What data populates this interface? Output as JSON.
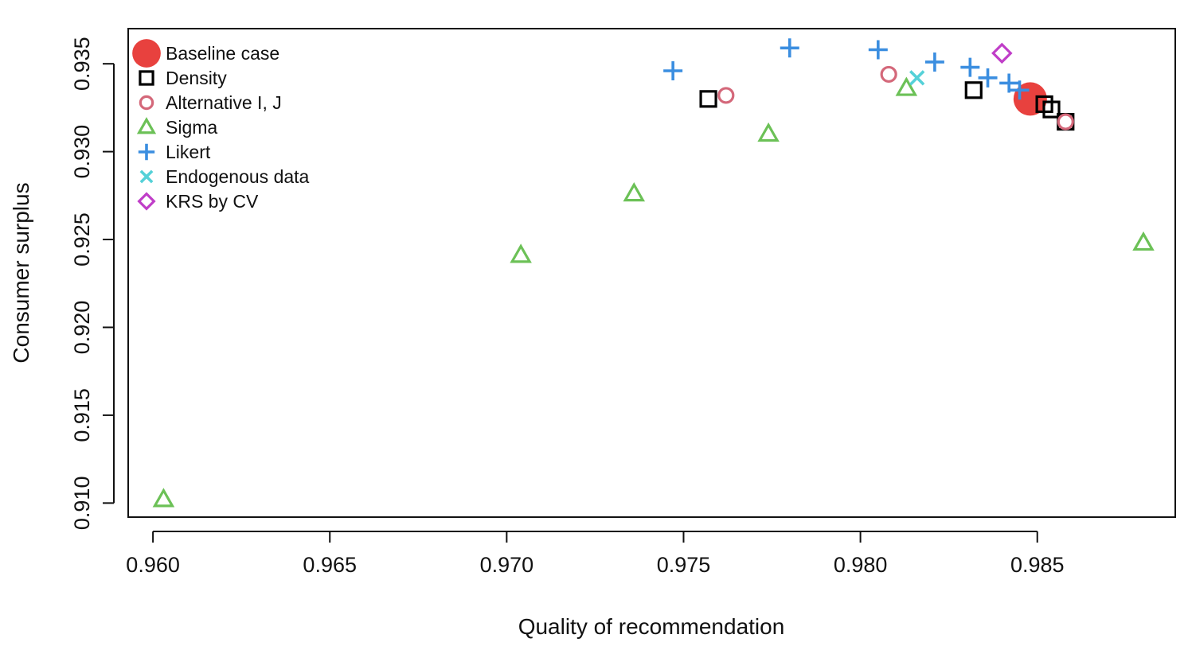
{
  "chart_data": {
    "type": "scatter",
    "title": "",
    "xlabel": "Quality of recommendation",
    "ylabel": "Consumer surplus",
    "xlim": [
      0.9593,
      0.9889
    ],
    "ylim": [
      0.9092,
      0.937
    ],
    "x_ticks": [
      "0.960",
      "0.965",
      "0.970",
      "0.975",
      "0.980",
      "0.985"
    ],
    "y_ticks": [
      "0.910",
      "0.915",
      "0.920",
      "0.925",
      "0.930",
      "0.935"
    ],
    "grid": false,
    "legend_position": "top-left",
    "series": [
      {
        "name": "Baseline case",
        "marker": "filled-circle",
        "color": "#e8413e",
        "points": [
          [
            0.9848,
            0.933
          ]
        ]
      },
      {
        "name": "Density",
        "marker": "square",
        "color": "#000000",
        "points": [
          [
            0.9757,
            0.933
          ],
          [
            0.9832,
            0.9335
          ],
          [
            0.9852,
            0.9327
          ],
          [
            0.9854,
            0.9324
          ],
          [
            0.9858,
            0.9317
          ]
        ]
      },
      {
        "name": "Alternative I, J",
        "marker": "circle",
        "color": "#d4687a",
        "points": [
          [
            0.9762,
            0.9332
          ],
          [
            0.9808,
            0.9344
          ],
          [
            0.9858,
            0.9317
          ]
        ]
      },
      {
        "name": "Sigma",
        "marker": "triangle",
        "color": "#6cc157",
        "points": [
          [
            0.9603,
            0.9102
          ],
          [
            0.9704,
            0.9241
          ],
          [
            0.9736,
            0.9276
          ],
          [
            0.9774,
            0.931
          ],
          [
            0.9813,
            0.9336
          ],
          [
            0.988,
            0.9248
          ]
        ]
      },
      {
        "name": "Likert",
        "marker": "plus",
        "color": "#3b8ee0",
        "points": [
          [
            0.9747,
            0.9346
          ],
          [
            0.978,
            0.9359
          ],
          [
            0.9805,
            0.9358
          ],
          [
            0.9821,
            0.9351
          ],
          [
            0.9831,
            0.9348
          ],
          [
            0.9836,
            0.9342
          ],
          [
            0.9842,
            0.9339
          ],
          [
            0.9845,
            0.9335
          ]
        ]
      },
      {
        "name": "Endogenous data",
        "marker": "x",
        "color": "#55d1d8",
        "points": [
          [
            0.9816,
            0.9342
          ]
        ]
      },
      {
        "name": "KRS by CV",
        "marker": "diamond",
        "color": "#c03ec8",
        "points": [
          [
            0.984,
            0.9356
          ]
        ]
      }
    ]
  }
}
